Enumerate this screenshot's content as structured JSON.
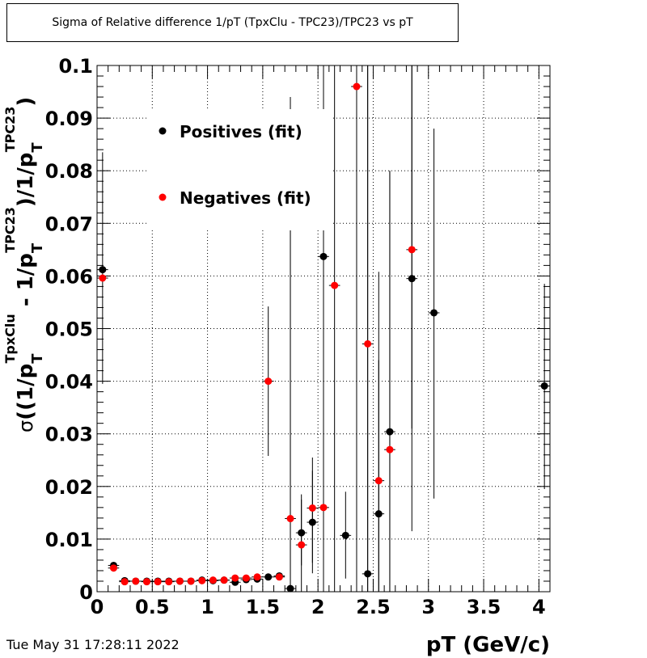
{
  "title": "Sigma of Relative difference 1/pT (TpxClu - TPC23)/TPC23 vs pT",
  "date_stamp": "Tue May 31 17:28:11 2022",
  "colors": {
    "positives": "#000000",
    "negatives": "#ff0000",
    "grid": "#000000"
  },
  "chart_data": {
    "type": "scatter",
    "title": "Sigma of Relative difference 1/pT (TpxClu - TPC23)/TPC23 vs pT",
    "xlabel": "pT (GeV/c)",
    "ylabel_parts": {
      "sigma": "σ",
      "p": "p",
      "T": "T",
      "tpxclu": "TpxClu",
      "tpc23": "TPC23",
      "open": "((1/",
      "minus": " - 1/",
      "close": ")/1/",
      "end": ")"
    },
    "xlim": [
      0,
      4.1
    ],
    "ylim": [
      0,
      0.1
    ],
    "x_ticks": [
      0,
      0.5,
      1,
      1.5,
      2,
      2.5,
      3,
      3.5,
      4
    ],
    "x_tick_labels": [
      "0",
      "0.5",
      "1",
      "1.5",
      "2",
      "2.5",
      "3",
      "3.5",
      "4"
    ],
    "y_ticks": [
      0,
      0.01,
      0.02,
      0.03,
      0.04,
      0.05,
      0.06,
      0.07,
      0.08,
      0.09,
      0.1
    ],
    "y_tick_labels": [
      "0",
      "0.01",
      "0.02",
      "0.03",
      "0.04",
      "0.05",
      "0.06",
      "0.07",
      "0.08",
      "0.09",
      "0.1"
    ],
    "grid": true,
    "legend_position": "top-left",
    "series": [
      {
        "name": "Positives (fit)",
        "color": "#000000",
        "points": [
          {
            "x": 0.05,
            "y": 0.0612,
            "ylo": 0.0395,
            "yhi": 0.0835
          },
          {
            "x": 0.15,
            "y": 0.005,
            "ylo": 0.0044,
            "yhi": 0.0056
          },
          {
            "x": 0.25,
            "y": 0.0021,
            "ylo": 0.0017,
            "yhi": 0.0025
          },
          {
            "x": 0.35,
            "y": 0.002,
            "ylo": 0.0017,
            "yhi": 0.0023
          },
          {
            "x": 0.45,
            "y": 0.002,
            "ylo": 0.0017,
            "yhi": 0.0023
          },
          {
            "x": 0.55,
            "y": 0.002,
            "ylo": 0.0017,
            "yhi": 0.0023
          },
          {
            "x": 0.65,
            "y": 0.002,
            "ylo": 0.0017,
            "yhi": 0.0023
          },
          {
            "x": 0.75,
            "y": 0.002,
            "ylo": 0.0017,
            "yhi": 0.0023
          },
          {
            "x": 0.85,
            "y": 0.002,
            "ylo": 0.0017,
            "yhi": 0.0023
          },
          {
            "x": 0.95,
            "y": 0.0022,
            "ylo": 0.0019,
            "yhi": 0.0025
          },
          {
            "x": 1.05,
            "y": 0.0021,
            "ylo": 0.0018,
            "yhi": 0.0024
          },
          {
            "x": 1.15,
            "y": 0.0022,
            "ylo": 0.0019,
            "yhi": 0.0025
          },
          {
            "x": 1.25,
            "y": 0.0018,
            "ylo": 0.0014,
            "yhi": 0.0022
          },
          {
            "x": 1.35,
            "y": 0.0023,
            "ylo": 0.0019,
            "yhi": 0.0027
          },
          {
            "x": 1.45,
            "y": 0.0024,
            "ylo": 0.002,
            "yhi": 0.0028
          },
          {
            "x": 1.55,
            "y": 0.0028,
            "ylo": 0.0024,
            "yhi": 0.0032
          },
          {
            "x": 1.65,
            "y": 0.003,
            "ylo": 0.0025,
            "yhi": 0.0035
          },
          {
            "x": 1.75,
            "y": 0.0006,
            "ylo": 0.0,
            "yhi": 0.094
          },
          {
            "x": 1.85,
            "y": 0.0112,
            "ylo": 0.005,
            "yhi": 0.0175
          },
          {
            "x": 1.95,
            "y": 0.0132,
            "ylo": 0.0035,
            "yhi": 0.023
          },
          {
            "x": 2.05,
            "y": 0.0637,
            "ylo": 0.0,
            "yhi": 0.1
          },
          {
            "x": 2.25,
            "y": 0.0107,
            "ylo": 0.0025,
            "yhi": 0.019
          },
          {
            "x": 2.45,
            "y": 0.0034,
            "ylo": 0.0,
            "yhi": 0.1
          },
          {
            "x": 2.55,
            "y": 0.0148,
            "ylo": 0.0,
            "yhi": 0.0608
          },
          {
            "x": 2.65,
            "y": 0.0304,
            "ylo": 0.0,
            "yhi": 0.08
          },
          {
            "x": 2.85,
            "y": 0.0595,
            "ylo": 0.0115,
            "yhi": 0.1
          },
          {
            "x": 3.05,
            "y": 0.053,
            "ylo": 0.0177,
            "yhi": 0.088
          },
          {
            "x": 4.05,
            "y": 0.0391,
            "ylo": 0.0195,
            "yhi": 0.0585
          }
        ]
      },
      {
        "name": "Negatives (fit)",
        "color": "#ff0000",
        "points": [
          {
            "x": 0.05,
            "y": 0.0596,
            "ylo": 0.0596,
            "yhi": 0.0596
          },
          {
            "x": 0.15,
            "y": 0.0045,
            "ylo": 0.004,
            "yhi": 0.005
          },
          {
            "x": 0.25,
            "y": 0.0019,
            "ylo": 0.0016,
            "yhi": 0.0022
          },
          {
            "x": 0.35,
            "y": 0.002,
            "ylo": 0.0017,
            "yhi": 0.0023
          },
          {
            "x": 0.45,
            "y": 0.0019,
            "ylo": 0.0016,
            "yhi": 0.0022
          },
          {
            "x": 0.55,
            "y": 0.0019,
            "ylo": 0.0016,
            "yhi": 0.0022
          },
          {
            "x": 0.65,
            "y": 0.0019,
            "ylo": 0.0016,
            "yhi": 0.0022
          },
          {
            "x": 0.75,
            "y": 0.002,
            "ylo": 0.0017,
            "yhi": 0.0023
          },
          {
            "x": 0.85,
            "y": 0.002,
            "ylo": 0.0017,
            "yhi": 0.0023
          },
          {
            "x": 0.95,
            "y": 0.0021,
            "ylo": 0.0018,
            "yhi": 0.0024
          },
          {
            "x": 1.05,
            "y": 0.0022,
            "ylo": 0.0019,
            "yhi": 0.0025
          },
          {
            "x": 1.15,
            "y": 0.0022,
            "ylo": 0.0019,
            "yhi": 0.0025
          },
          {
            "x": 1.25,
            "y": 0.0026,
            "ylo": 0.0022,
            "yhi": 0.003
          },
          {
            "x": 1.35,
            "y": 0.0026,
            "ylo": 0.0022,
            "yhi": 0.003
          },
          {
            "x": 1.45,
            "y": 0.0028,
            "ylo": 0.0024,
            "yhi": 0.0032
          },
          {
            "x": 1.55,
            "y": 0.04,
            "ylo": 0.0258,
            "yhi": 0.0542
          },
          {
            "x": 1.65,
            "y": 0.0028,
            "ylo": 0.0024,
            "yhi": 0.0032
          },
          {
            "x": 1.75,
            "y": 0.0139,
            "ylo": 0.0,
            "yhi": 0.069
          },
          {
            "x": 1.85,
            "y": 0.0089,
            "ylo": 0.0,
            "yhi": 0.0185
          },
          {
            "x": 1.95,
            "y": 0.0159,
            "ylo": 0.0055,
            "yhi": 0.0255
          },
          {
            "x": 2.05,
            "y": 0.016,
            "ylo": 0.0,
            "yhi": 0.1
          },
          {
            "x": 2.15,
            "y": 0.0582,
            "ylo": 0.0,
            "yhi": 0.1
          },
          {
            "x": 2.35,
            "y": 0.096,
            "ylo": 0.0,
            "yhi": 0.1
          },
          {
            "x": 2.45,
            "y": 0.0471,
            "ylo": 0.0,
            "yhi": 0.1
          },
          {
            "x": 2.55,
            "y": 0.0211,
            "ylo": 0.0,
            "yhi": 0.044
          },
          {
            "x": 2.65,
            "y": 0.027,
            "ylo": 0.0,
            "yhi": 0.08
          },
          {
            "x": 2.85,
            "y": 0.065,
            "ylo": 0.031,
            "yhi": 0.1
          }
        ]
      }
    ]
  }
}
